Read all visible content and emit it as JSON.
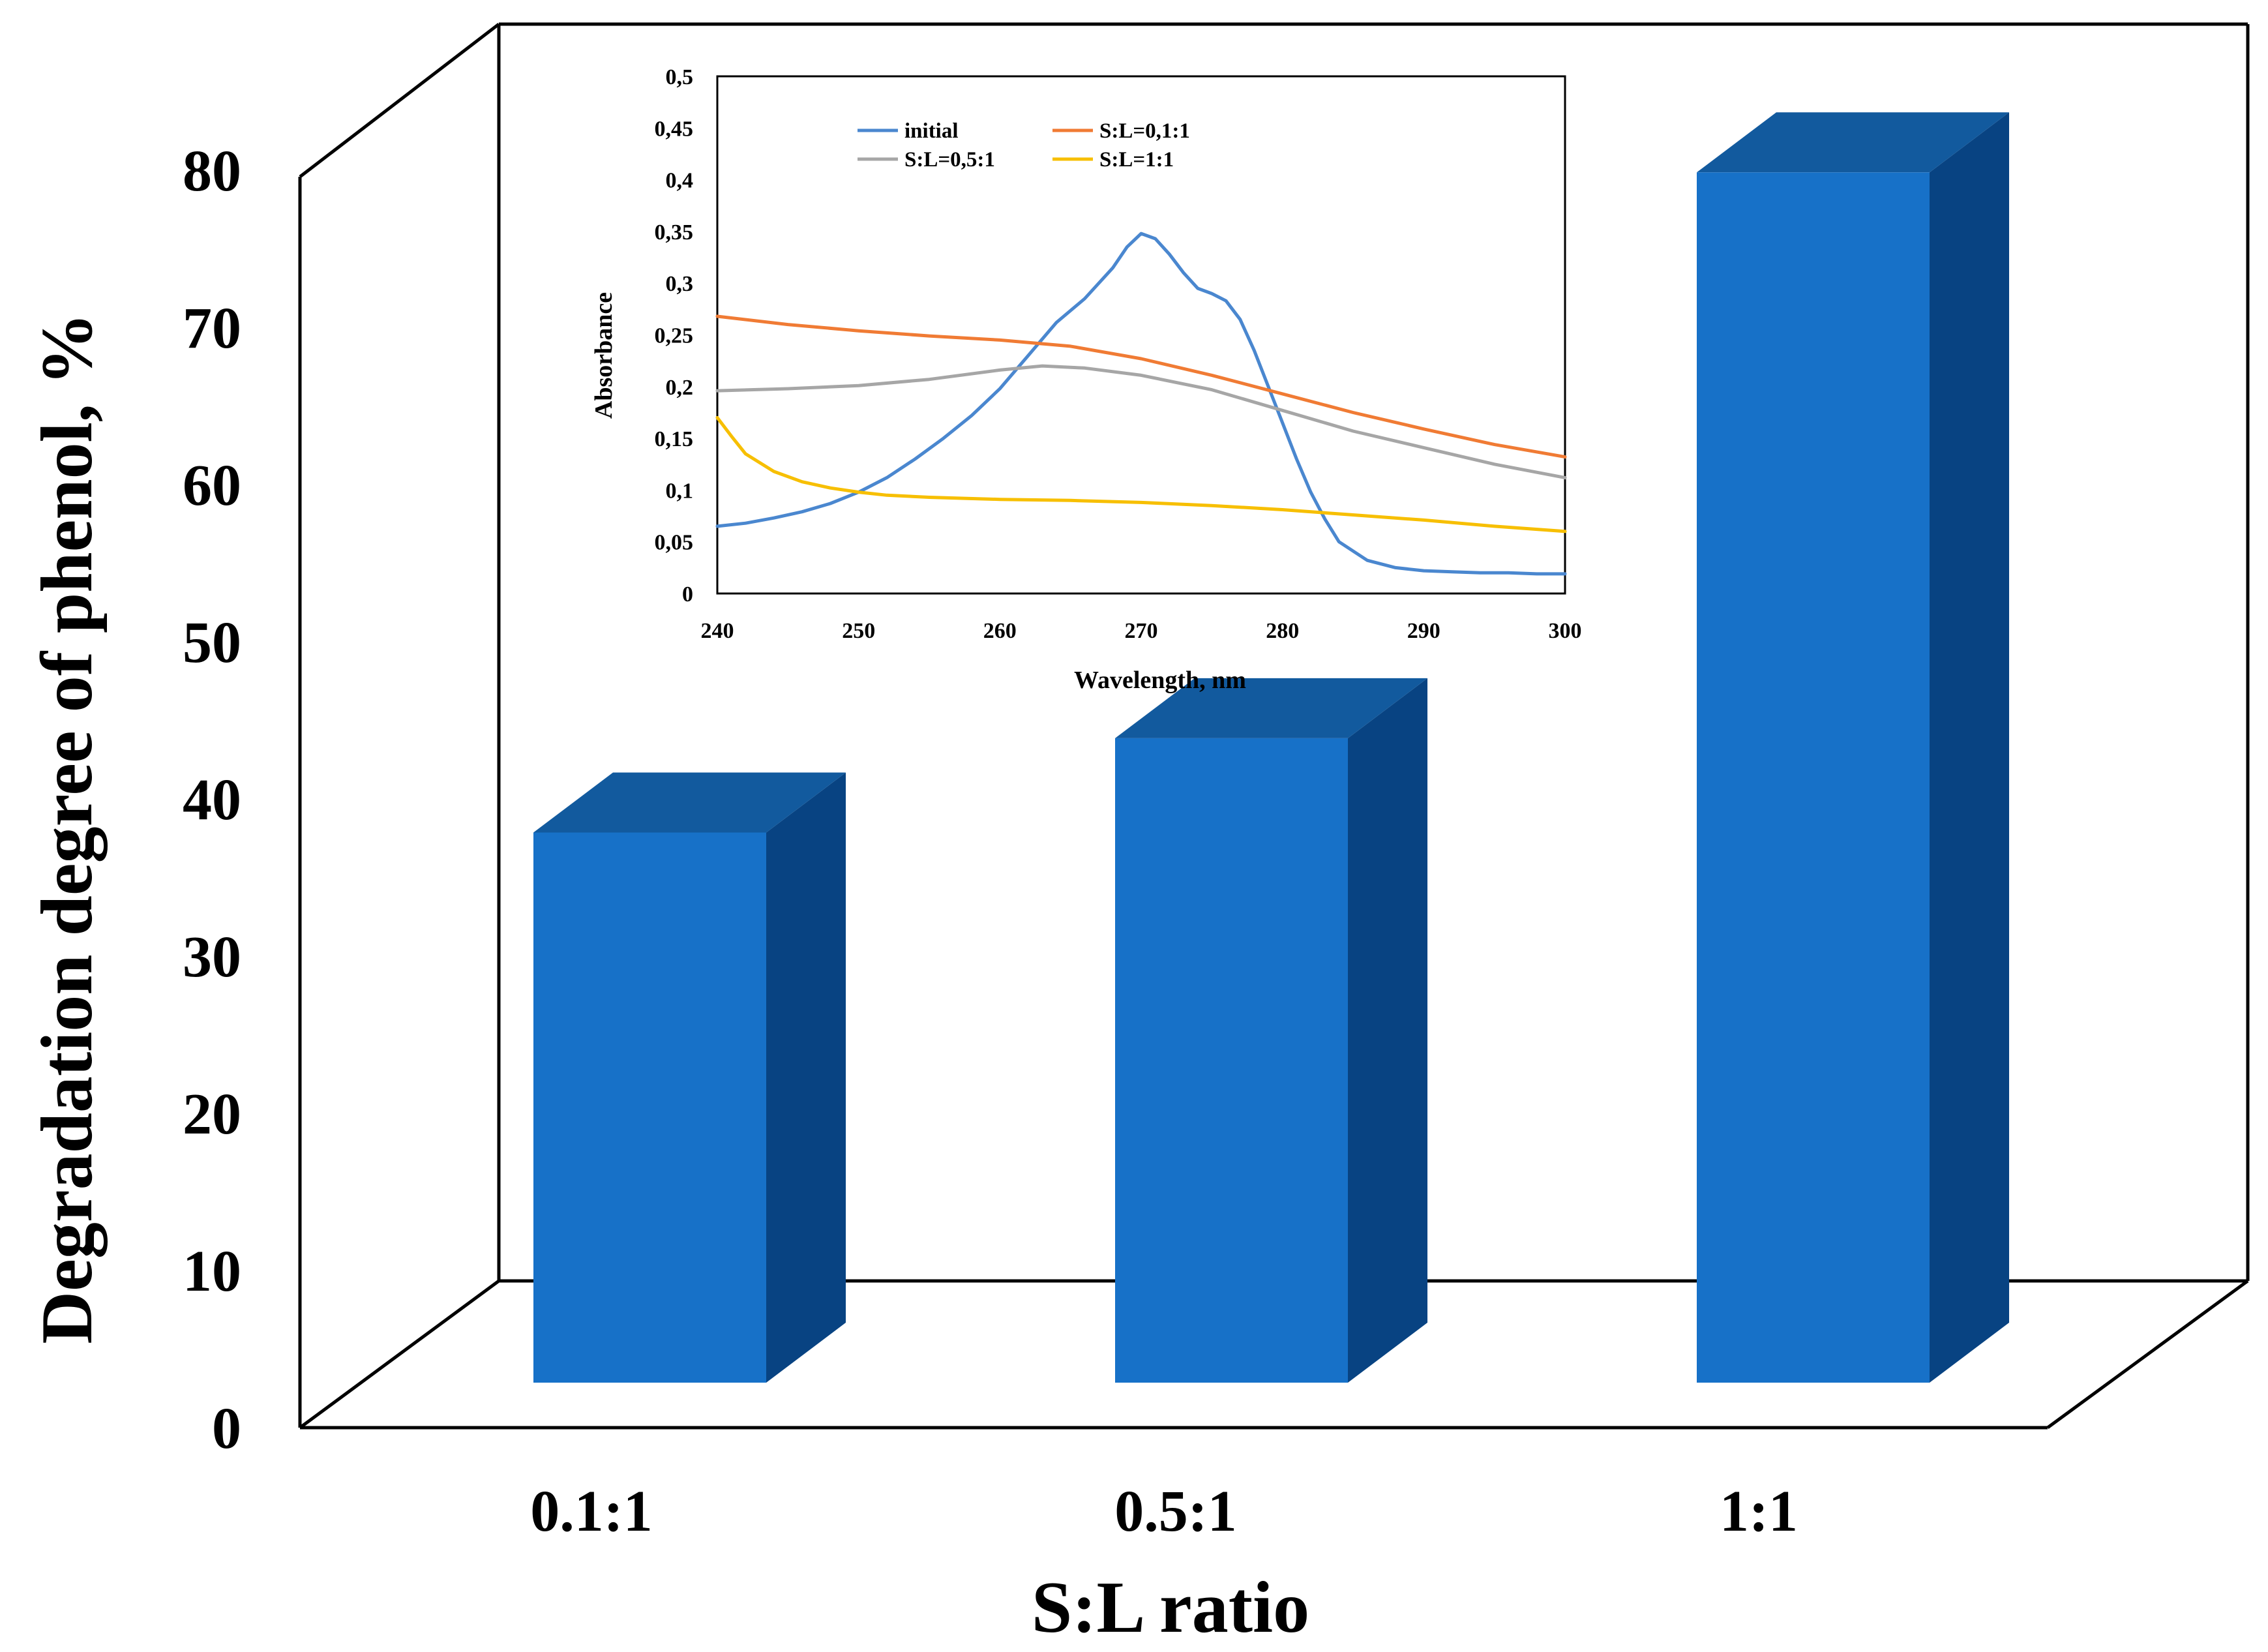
{
  "chart_data": [
    {
      "type": "bar",
      "style": "3d-column",
      "categories": [
        "0.1:1",
        "0.5:1",
        "1:1"
      ],
      "values": [
        35,
        41,
        77
      ],
      "xlabel": "S:L ratio",
      "ylabel": "Degradation degree of phenol, %",
      "ylim": [
        0,
        80
      ],
      "yticks": [
        "0",
        "10",
        "20",
        "30",
        "40",
        "50",
        "60",
        "70",
        "80"
      ],
      "grid": false,
      "colors": {
        "front": "#1771C8",
        "top": "#125A9E",
        "side": "#084382"
      }
    },
    {
      "type": "line",
      "placement": "inset, top-center",
      "xlabel": "Wavelength, nm",
      "ylabel": "Absorbance",
      "xlim": [
        240,
        300
      ],
      "ylim": [
        0,
        0.5
      ],
      "xticks": [
        "240",
        "250",
        "260",
        "270",
        "280",
        "290",
        "300"
      ],
      "yticks": [
        "0",
        "0,05",
        "0,1",
        "0,15",
        "0,2",
        "0,25",
        "0,3",
        "0,35",
        "0,4",
        "0,45",
        "0,5"
      ],
      "legend_position": "top",
      "series": [
        {
          "name": "initial",
          "color": "#4A87CF",
          "x": [
            240,
            242,
            244,
            246,
            248,
            250,
            252,
            254,
            256,
            258,
            260,
            262,
            264,
            266,
            268,
            269,
            270,
            271,
            272,
            273,
            274,
            275,
            276,
            277,
            278,
            279,
            280,
            281,
            282,
            283,
            284,
            286,
            288,
            290,
            292,
            294,
            296,
            298,
            300
          ],
          "y": [
            0.065,
            0.068,
            0.073,
            0.079,
            0.087,
            0.098,
            0.112,
            0.13,
            0.15,
            0.172,
            0.198,
            0.23,
            0.262,
            0.285,
            0.315,
            0.335,
            0.348,
            0.343,
            0.328,
            0.31,
            0.295,
            0.29,
            0.283,
            0.265,
            0.235,
            0.2,
            0.165,
            0.13,
            0.098,
            0.072,
            0.05,
            0.032,
            0.025,
            0.022,
            0.021,
            0.02,
            0.02,
            0.019,
            0.019
          ]
        },
        {
          "name": "S:L=0,1:1",
          "color": "#F07B34",
          "x": [
            240,
            245,
            250,
            255,
            260,
            265,
            270,
            275,
            280,
            285,
            290,
            295,
            300
          ],
          "y": [
            0.268,
            0.26,
            0.254,
            0.249,
            0.245,
            0.239,
            0.227,
            0.211,
            0.193,
            0.175,
            0.159,
            0.144,
            0.132
          ]
        },
        {
          "name": "S:L=0,5:1",
          "color": "#A6A6A6",
          "x": [
            240,
            245,
            250,
            255,
            260,
            263,
            266,
            270,
            275,
            280,
            285,
            290,
            295,
            300
          ],
          "y": [
            0.196,
            0.198,
            0.201,
            0.207,
            0.216,
            0.22,
            0.218,
            0.211,
            0.197,
            0.177,
            0.157,
            0.141,
            0.125,
            0.112
          ]
        },
        {
          "name": "S:L=1:1",
          "color": "#F7BF00",
          "x": [
            240,
            241,
            242,
            244,
            246,
            248,
            250,
            252,
            255,
            260,
            265,
            270,
            275,
            280,
            285,
            290,
            295,
            300
          ],
          "y": [
            0.17,
            0.152,
            0.135,
            0.118,
            0.108,
            0.102,
            0.098,
            0.095,
            0.093,
            0.091,
            0.09,
            0.088,
            0.085,
            0.081,
            0.076,
            0.071,
            0.065,
            0.06
          ]
        }
      ]
    }
  ]
}
